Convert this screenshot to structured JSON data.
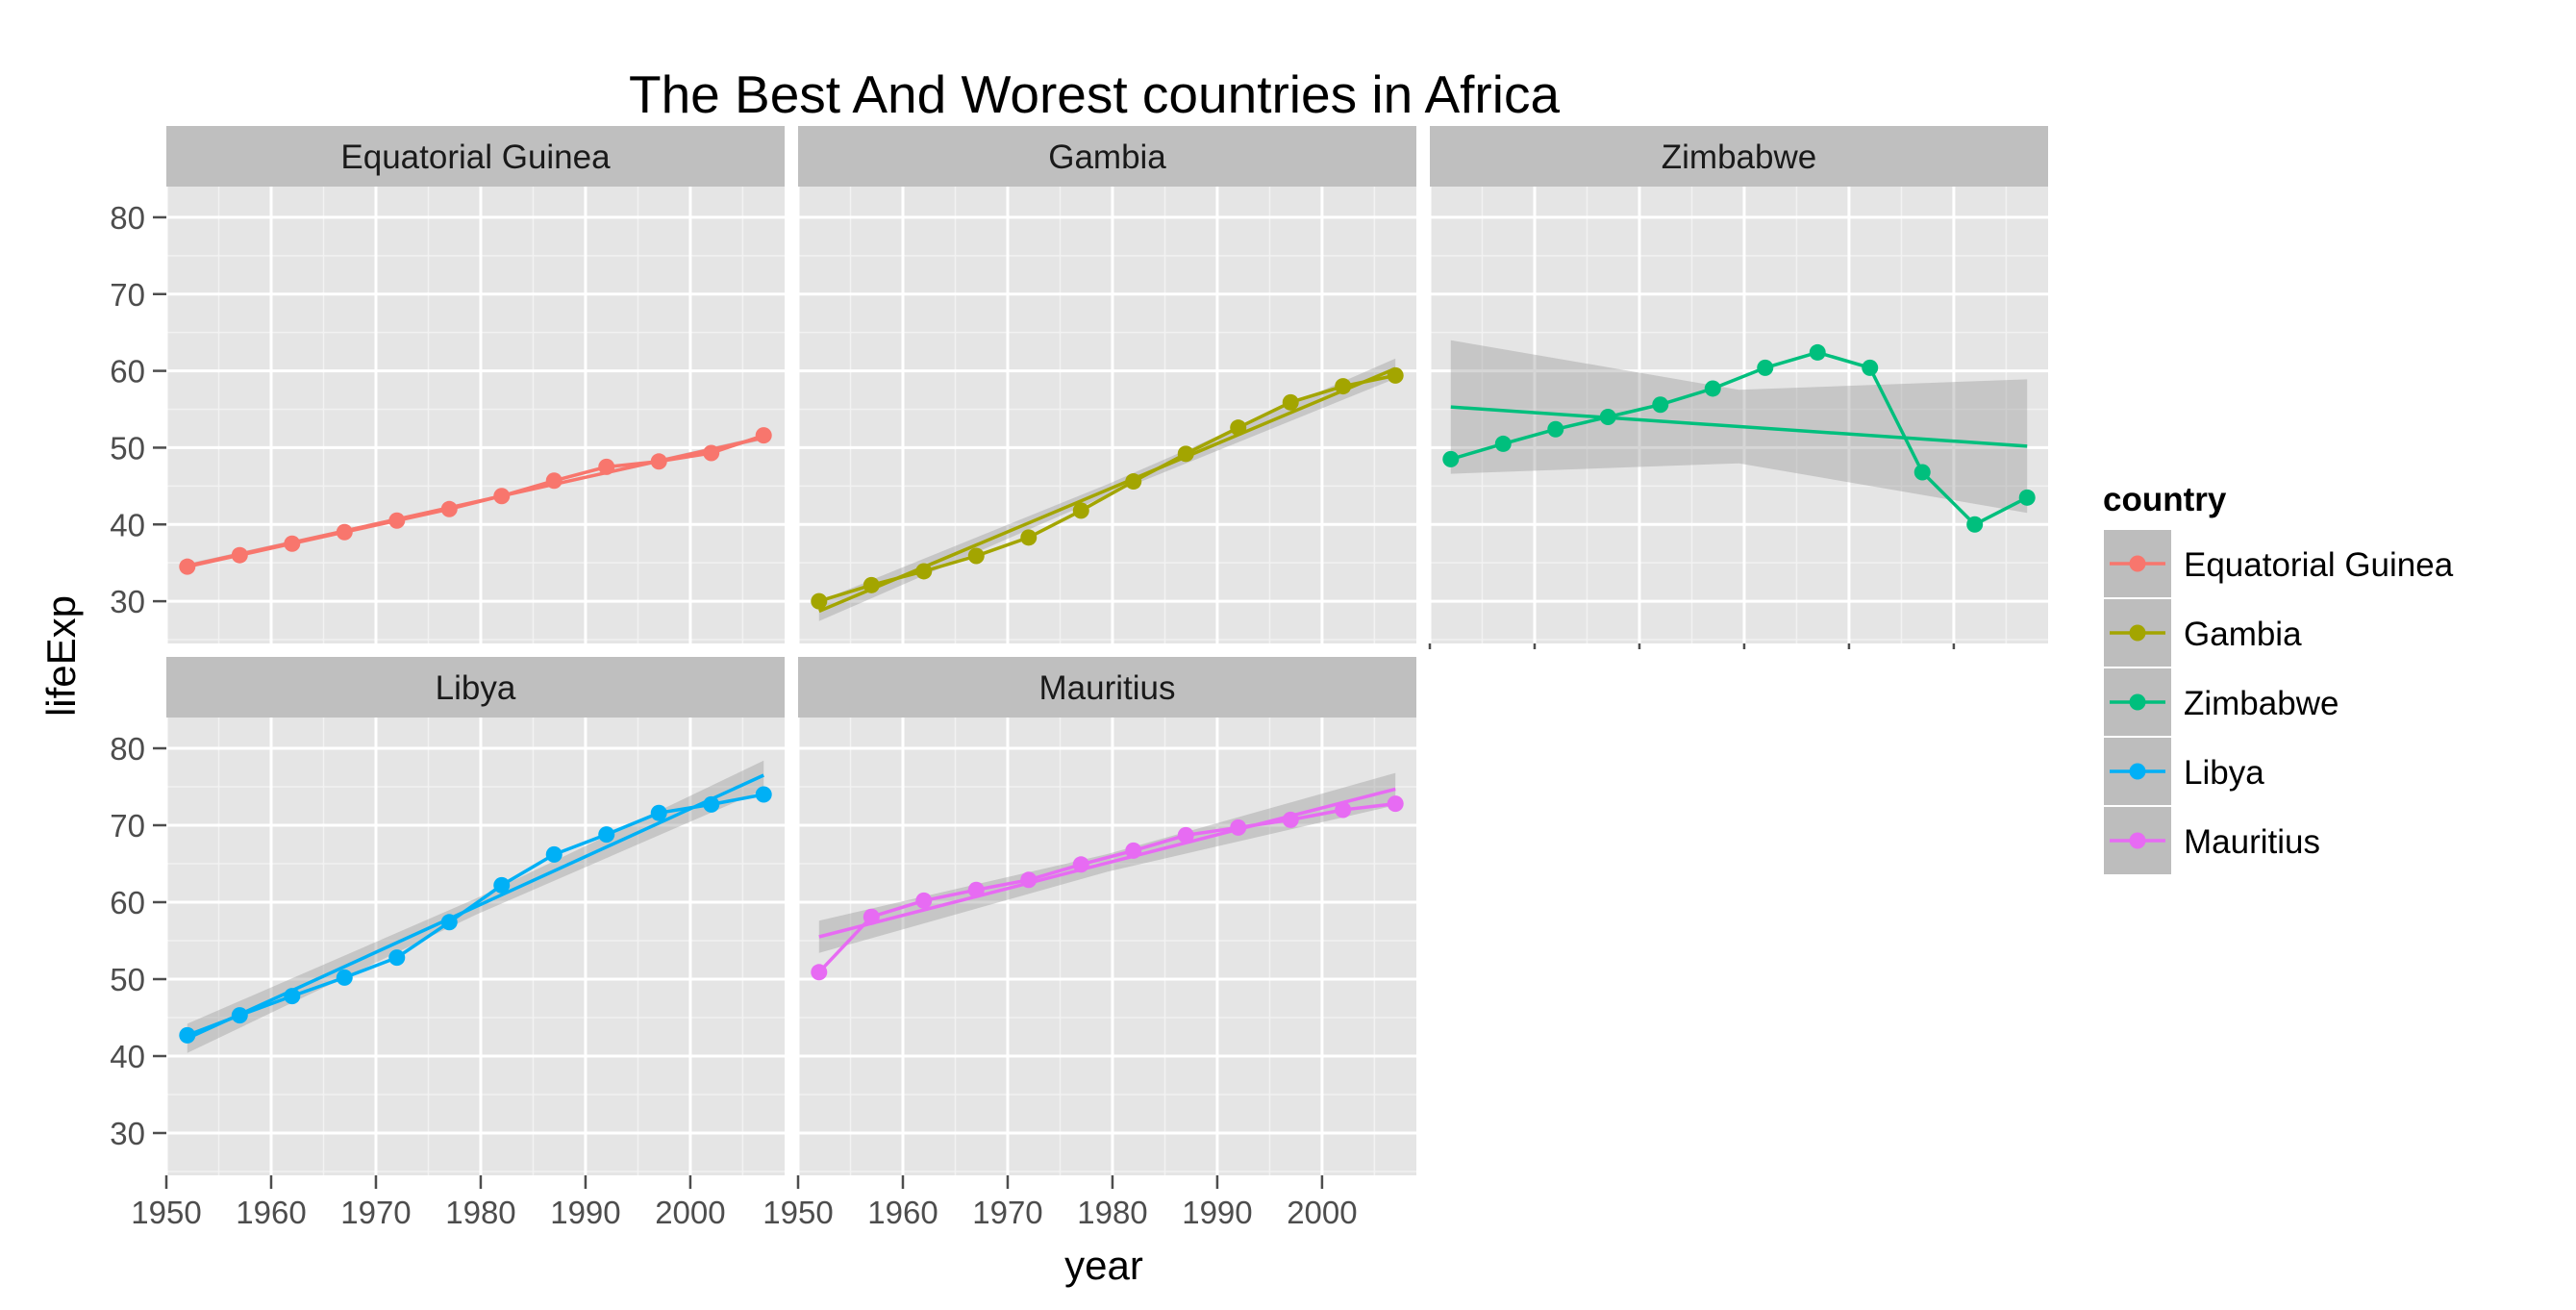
{
  "chart_data": {
    "type": "line",
    "title": "The Best And Worest countries in Africa",
    "xlabel": "year",
    "ylabel": "lifeExp",
    "xlim": [
      1950,
      2009
    ],
    "ylim": [
      24.5,
      84
    ],
    "x_ticks": [
      "1950",
      "1960",
      "1970",
      "1980",
      "1990",
      "2000"
    ],
    "y_ticks": [
      "30",
      "40",
      "50",
      "60",
      "70",
      "80"
    ],
    "grid": true,
    "smoother": "linear fit with confidence band",
    "legend": {
      "title": "country",
      "position": "right"
    },
    "x": [
      1952,
      1957,
      1962,
      1967,
      1972,
      1977,
      1982,
      1987,
      1992,
      1997,
      2002,
      2007
    ],
    "series": [
      {
        "name": "Equatorial Guinea",
        "color": "#F8766D",
        "values": [
          34.5,
          36.0,
          37.5,
          39.0,
          40.5,
          42.0,
          43.7,
          45.7,
          47.5,
          48.2,
          49.3,
          51.6
        ],
        "fit": [
          34.6,
          51.3
        ],
        "ci": 0.3
      },
      {
        "name": "Gambia",
        "color": "#A3A500",
        "values": [
          30.0,
          32.1,
          33.9,
          35.9,
          38.3,
          41.8,
          45.6,
          49.2,
          52.6,
          55.9,
          58.0,
          59.4
        ],
        "fit": [
          28.7,
          60.3
        ],
        "ci": 1.3
      },
      {
        "name": "Zimbabwe",
        "color": "#00BF7D",
        "values": [
          48.5,
          50.5,
          52.4,
          54.0,
          55.6,
          57.7,
          60.4,
          62.4,
          60.4,
          46.8,
          40.0,
          43.5
        ],
        "fit": [
          55.3,
          50.2
        ],
        "ci": 8.7
      },
      {
        "name": "Libya",
        "color": "#00B0F6",
        "values": [
          42.7,
          45.3,
          47.8,
          50.2,
          52.8,
          57.4,
          62.2,
          66.2,
          68.8,
          71.6,
          72.7,
          74.0
        ],
        "fit": [
          42.3,
          76.5
        ],
        "ci": 1.9
      },
      {
        "name": "Mauritius",
        "color": "#E76BF3",
        "values": [
          50.9,
          58.1,
          60.2,
          61.6,
          62.9,
          64.9,
          66.7,
          68.7,
          69.7,
          70.7,
          72.0,
          72.8
        ],
        "fit": [
          55.5,
          74.7
        ],
        "ci": 2.1
      }
    ]
  }
}
